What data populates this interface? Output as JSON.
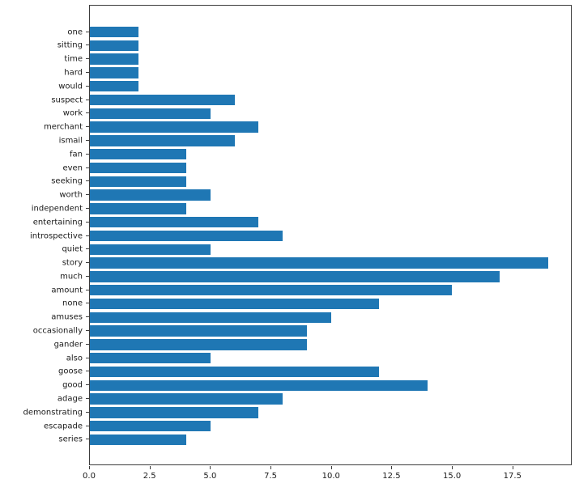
{
  "figure": {
    "background_color": "#ffffff",
    "bar_color": "#1f77b4",
    "spine_color": "#3c3c3c",
    "text_color": "#1a1a1a"
  },
  "chart_data": {
    "type": "bar",
    "orientation": "horizontal",
    "title": "",
    "xlabel": "",
    "ylabel": "",
    "grid": false,
    "legend": null,
    "categories": [
      "one",
      "sitting",
      "time",
      "hard",
      "would",
      "suspect",
      "work",
      "merchant",
      "ismail",
      "fan",
      "even",
      "seeking",
      "worth",
      "independent",
      "entertaining",
      "introspective",
      "quiet",
      "story",
      "much",
      "amount",
      "none",
      "amuses",
      "occasionally",
      "gander",
      "also",
      "goose",
      "good",
      "adage",
      "demonstrating",
      "escapade",
      "series"
    ],
    "values": [
      2,
      2,
      2,
      2,
      2,
      6,
      5,
      7,
      6,
      4,
      4,
      4,
      5,
      4,
      7,
      8,
      5,
      19,
      17,
      15,
      12,
      10,
      9,
      9,
      5,
      12,
      14,
      8,
      7,
      5,
      4
    ],
    "xlim": [
      0,
      19.95
    ],
    "xticks": [
      0.0,
      2.5,
      5.0,
      7.5,
      10.0,
      12.5,
      15.0,
      17.5
    ],
    "xtick_labels": [
      "0.0",
      "2.5",
      "5.0",
      "7.5",
      "10.0",
      "12.5",
      "15.0",
      "17.5"
    ],
    "bar_height_fraction": 0.8
  }
}
